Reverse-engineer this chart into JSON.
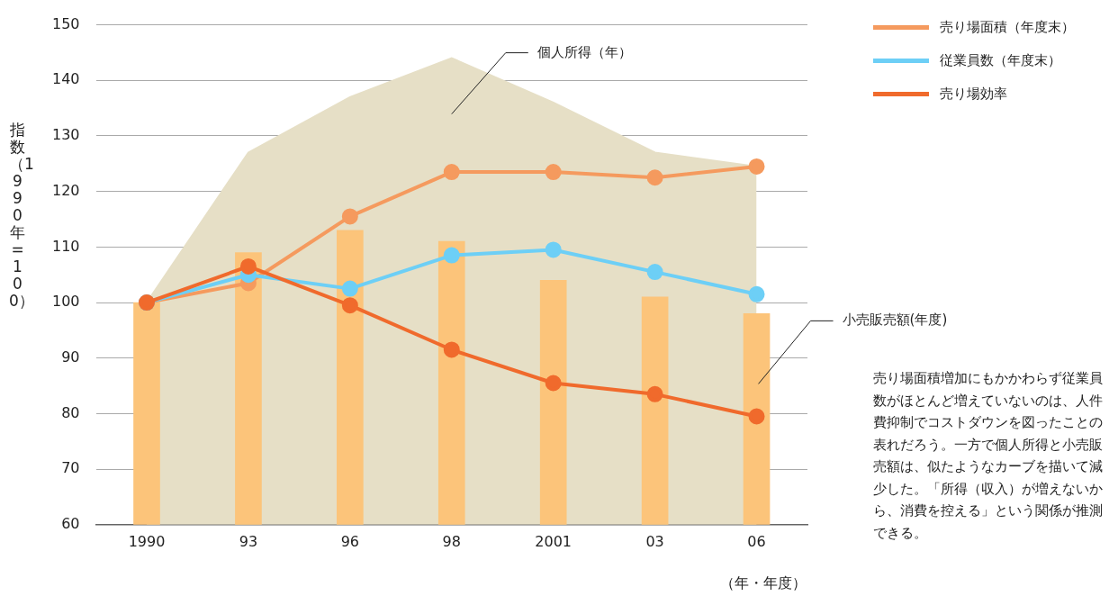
{
  "chart_data": {
    "type": "bar",
    "ylabel": "指数（1990年=100）",
    "xlabel": "（年・年度）",
    "categories": [
      "1990",
      "93",
      "96",
      "98",
      "2001",
      "03",
      "06"
    ],
    "ylim": [
      60,
      150
    ],
    "yticks": [
      60,
      70,
      80,
      90,
      100,
      110,
      120,
      130,
      140,
      150
    ],
    "grid": "y",
    "legend": "top right",
    "marker": "circle",
    "line_style": "solid",
    "series": [
      {
        "name": "個人所得（年）",
        "type": "area",
        "marker": "none",
        "color": "#e6dfc6",
        "values": [
          100,
          127,
          137,
          144,
          136,
          127,
          124.5
        ]
      },
      {
        "name": "小売販売額(年度)",
        "color": "#fcc47a",
        "values": [
          100,
          109,
          113,
          111,
          104,
          101,
          98
        ]
      },
      {
        "name": "売り場面積（年度末）",
        "type": "line",
        "color": "#f59a5e",
        "values": [
          100,
          103.5,
          115.5,
          123.5,
          123.5,
          122.5,
          124.5
        ]
      },
      {
        "name": "従業員数（年度末）",
        "type": "line",
        "color": "#6dcff6",
        "values": [
          100,
          105,
          102.5,
          108.5,
          109.5,
          105.5,
          101.5
        ]
      },
      {
        "name": "売り場効率",
        "type": "line",
        "color": "#f06a2c",
        "values": [
          100,
          106.5,
          99.5,
          91.5,
          85.5,
          83.5,
          79.5
        ]
      }
    ],
    "annotations": [
      "売り場面積増加にもかかわらず従業員数がほとんど増えていないのは、人件費抑制でコストダウンを図ったことの表れだろう。一方で個人所得と小売販売額は、似たようなカーブを描いて減少した。「所得（収入）が増えないから、消費を控える」という関係が推測できる。"
    ]
  }
}
